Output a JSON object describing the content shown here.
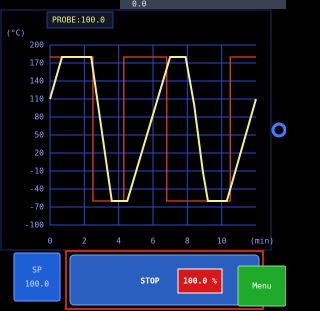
{
  "top_value": "0.0",
  "probe_label": "PROBE:100.0",
  "chart_data": {
    "type": "line",
    "y_label": "(°C)",
    "x_label": "(min)",
    "xlim": [
      0,
      12
    ],
    "ylim": [
      -100,
      200
    ],
    "xticks": [
      0,
      2,
      4,
      6,
      8,
      10
    ],
    "yticks": [
      200,
      170,
      140,
      110,
      80,
      50,
      20,
      -10,
      -40,
      -70,
      -100
    ],
    "grid": true,
    "series": [
      {
        "color": "#e0441c",
        "x": [
          0,
          2.5,
          2.5,
          4.3,
          4.3,
          6.8,
          6.8,
          10.5,
          10.5,
          12
        ],
        "values": [
          180,
          180,
          -60,
          -60,
          180,
          180,
          -60,
          -60,
          180,
          180
        ]
      },
      {
        "color": "#f4f08a",
        "x": [
          0,
          0.7,
          2.4,
          2.8,
          3.3,
          3.6,
          4.5,
          7.0,
          7.9,
          8.4,
          8.9,
          9.2,
          10.3,
          12
        ],
        "values": [
          110,
          180,
          180,
          100,
          0,
          -60,
          -60,
          180,
          180,
          100,
          -10,
          -60,
          -60,
          110
        ]
      }
    ]
  },
  "buttons": {
    "sp_label": "SP",
    "sp_value": "100.0",
    "stop": "STOP",
    "output": "100.0 %",
    "menu": "Menu"
  }
}
